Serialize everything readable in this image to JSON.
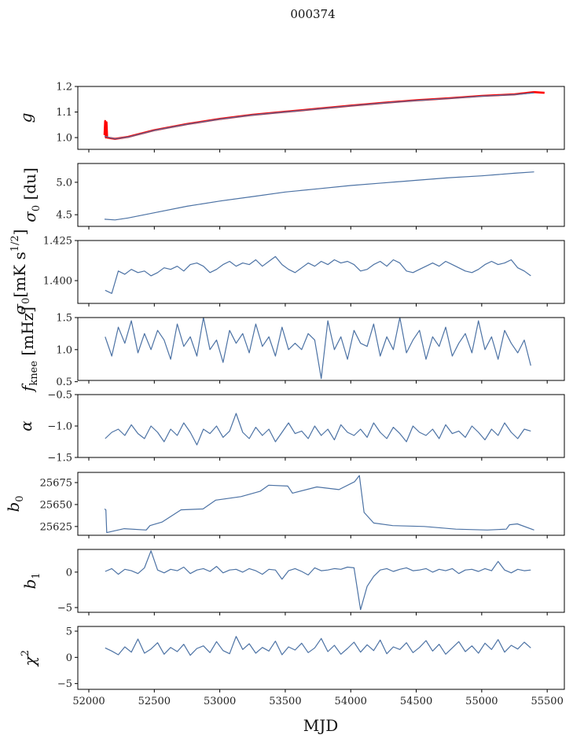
{
  "chart_data": {
    "type": "line",
    "title": "000374",
    "xlabel": "MJD",
    "xlim": [
      51916,
      55631
    ],
    "xticks": [
      52000,
      52500,
      53000,
      53500,
      54000,
      54500,
      55000,
      55500
    ],
    "line_color": "#4c72a4",
    "highlight_color": "#ff0000",
    "mjd_grid": [
      52125,
      52175,
      52225,
      52275,
      52325,
      52375,
      52425,
      52475,
      52525,
      52575,
      52625,
      52675,
      52725,
      52775,
      52825,
      52875,
      52925,
      52975,
      53025,
      53075,
      53125,
      53175,
      53225,
      53275,
      53325,
      53375,
      53425,
      53475,
      53525,
      53575,
      53625,
      53675,
      53725,
      53775,
      53825,
      53875,
      53925,
      53975,
      54025,
      54075,
      54125,
      54175,
      54225,
      54275,
      54325,
      54375,
      54425,
      54475,
      54525,
      54575,
      54625,
      54675,
      54725,
      54775,
      54825,
      54875,
      54925,
      54975,
      55025,
      55075,
      55125,
      55175,
      55225,
      55275,
      55325,
      55375
    ],
    "panels": [
      {
        "id": "g",
        "ylabel": {
          "main": "g",
          "sub": "",
          "sup": "",
          "rest": ""
        },
        "ylim": [
          0.954,
          1.2
        ],
        "yticks": [
          "1.0",
          "1.1",
          "1.2"
        ],
        "series": [
          {
            "name": "g-fit",
            "color": "#ff0000",
            "x": [
              52120,
              52125,
              52130,
              52135,
              52140,
              52200,
              52300,
              52500,
              52750,
              53000,
              53250,
              53500,
              53750,
              54000,
              54250,
              54500,
              54750,
              55000,
              55250,
              55400,
              55480
            ],
            "y": [
              1.01,
              1.065,
              1.0,
              1.06,
              1.0,
              0.995,
              1.003,
              1.029,
              1.053,
              1.073,
              1.089,
              1.101,
              1.113,
              1.125,
              1.136,
              1.146,
              1.154,
              1.163,
              1.169,
              1.178,
              1.175
            ]
          },
          {
            "name": "g",
            "color": "#4c72a4",
            "x": [
              52120,
              52200,
              52300,
              52500,
              52750,
              53000,
              53250,
              53500,
              53750,
              54000,
              54250,
              54500,
              54750,
              55000,
              55250,
              55400
            ],
            "y": [
              1.005,
              0.995,
              1.002,
              1.028,
              1.052,
              1.072,
              1.088,
              1.1,
              1.112,
              1.124,
              1.135,
              1.145,
              1.153,
              1.162,
              1.168,
              1.175
            ]
          }
        ]
      },
      {
        "id": "sigma0-du",
        "ylabel": {
          "main": "σ",
          "sub": "0",
          "sup": "",
          "rest": " [du]"
        },
        "ylim": [
          4.32,
          5.29
        ],
        "yticks": [
          "4.5",
          "5.0"
        ],
        "series": [
          {
            "name": "sigma0 du",
            "color": "#4c72a4",
            "x": [
              52120,
              52200,
              52300,
              52500,
              52750,
              53000,
              53250,
              53500,
              53750,
              54000,
              54250,
              54500,
              54750,
              55000,
              55250,
              55400
            ],
            "y": [
              4.43,
              4.42,
              4.45,
              4.53,
              4.63,
              4.71,
              4.78,
              4.85,
              4.9,
              4.95,
              4.99,
              5.03,
              5.07,
              5.1,
              5.14,
              5.16
            ]
          }
        ]
      },
      {
        "id": "sigma0-mk",
        "ylabel": {
          "main": "σ",
          "sub": "0",
          "sup": "1/2",
          "rest": "[mK s",
          "close": "]"
        },
        "ylim": [
          1.3858,
          1.425
        ],
        "yticks": [
          "1.400",
          "1.425"
        ],
        "series": [
          {
            "name": "sigma0 mK",
            "color": "#4c72a4",
            "grid": true,
            "y": [
              1.394,
              1.392,
              1.406,
              1.404,
              1.407,
              1.405,
              1.406,
              1.403,
              1.405,
              1.408,
              1.407,
              1.409,
              1.406,
              1.41,
              1.411,
              1.409,
              1.405,
              1.407,
              1.41,
              1.412,
              1.409,
              1.411,
              1.41,
              1.413,
              1.409,
              1.412,
              1.415,
              1.41,
              1.407,
              1.405,
              1.408,
              1.411,
              1.409,
              1.412,
              1.41,
              1.413,
              1.411,
              1.412,
              1.41,
              1.406,
              1.407,
              1.41,
              1.412,
              1.409,
              1.413,
              1.411,
              1.406,
              1.405,
              1.407,
              1.409,
              1.411,
              1.409,
              1.412,
              1.41,
              1.408,
              1.406,
              1.405,
              1.407,
              1.41,
              1.412,
              1.41,
              1.411,
              1.413,
              1.408,
              1.406,
              1.403
            ]
          }
        ]
      },
      {
        "id": "fknee",
        "ylabel": {
          "main": "f",
          "sub": "knee",
          "sup": "",
          "rest": " [mHz]"
        },
        "ylim": [
          0.52,
          1.5
        ],
        "yticks": [
          "0.5",
          "1.0",
          "1.5"
        ],
        "series": [
          {
            "name": "fknee",
            "color": "#4c72a4",
            "grid": true,
            "y": [
              1.2,
              0.9,
              1.35,
              1.1,
              1.45,
              0.95,
              1.25,
              1.0,
              1.3,
              1.15,
              0.85,
              1.4,
              1.05,
              1.2,
              0.9,
              1.5,
              1.0,
              1.15,
              0.8,
              1.3,
              1.1,
              1.25,
              0.95,
              1.4,
              1.05,
              1.2,
              0.9,
              1.35,
              1.0,
              1.1,
              1.0,
              1.25,
              1.15,
              0.55,
              1.45,
              1.0,
              1.2,
              0.85,
              1.3,
              1.1,
              1.05,
              1.4,
              0.9,
              1.2,
              1.0,
              1.5,
              0.95,
              1.15,
              1.3,
              0.85,
              1.2,
              1.05,
              1.35,
              0.9,
              1.1,
              1.25,
              0.95,
              1.45,
              1.0,
              1.2,
              0.85,
              1.3,
              1.1,
              0.95,
              1.15,
              0.75
            ]
          }
        ]
      },
      {
        "id": "alpha",
        "ylabel": {
          "main": "α",
          "sub": "",
          "sup": "",
          "rest": ""
        },
        "ylim": [
          -1.5,
          -0.5
        ],
        "yticks": [
          "−1.5",
          "−1.0",
          "−0.5"
        ],
        "series": [
          {
            "name": "alpha",
            "color": "#4c72a4",
            "grid": true,
            "y": [
              -1.2,
              -1.1,
              -1.05,
              -1.15,
              -0.98,
              -1.12,
              -1.2,
              -1.0,
              -1.1,
              -1.25,
              -1.05,
              -1.15,
              -0.95,
              -1.1,
              -1.3,
              -1.05,
              -1.12,
              -1.0,
              -1.18,
              -1.08,
              -0.8,
              -1.1,
              -1.2,
              -1.02,
              -1.15,
              -1.05,
              -1.25,
              -1.1,
              -0.95,
              -1.12,
              -1.08,
              -1.2,
              -1.0,
              -1.15,
              -1.05,
              -1.22,
              -0.98,
              -1.1,
              -1.15,
              -1.05,
              -1.18,
              -0.95,
              -1.1,
              -1.2,
              -1.02,
              -1.12,
              -1.25,
              -1.0,
              -1.1,
              -1.15,
              -1.05,
              -1.2,
              -0.98,
              -1.12,
              -1.08,
              -1.18,
              -1.0,
              -1.1,
              -1.22,
              -1.05,
              -1.15,
              -0.95,
              -1.1,
              -1.2,
              -1.05,
              -1.08
            ]
          }
        ]
      },
      {
        "id": "b0",
        "ylabel": {
          "main": "b",
          "sub": "0",
          "sup": "",
          "rest": ""
        },
        "ylim": [
          25615,
          25686.6
        ],
        "yticks": [
          "25625",
          "25650",
          "25675"
        ],
        "series": [
          {
            "name": "b0",
            "color": "#4c72a4",
            "x": [
              52120,
              52130,
              52137,
              52270,
              52438,
              52467,
              52559,
              52704,
              52872,
              52969,
              53162,
              53307,
              53374,
              53519,
              53555,
              53741,
              53910,
              54030,
              54066,
              54102,
              54175,
              54320,
              54561,
              54802,
              55043,
              55188,
              55212,
              55272,
              55400
            ],
            "y": [
              25645,
              25644,
              25618,
              25622.5,
              25621,
              25626,
              25630,
              25644,
              25645,
              25655,
              25659,
              25665,
              25672,
              25671,
              25663,
              25670,
              25667,
              25676,
              25683,
              25641,
              25629,
              25626,
              25625,
              25622,
              25621,
              25622,
              25627,
              25628,
              25621
            ]
          }
        ]
      },
      {
        "id": "b1",
        "ylabel": {
          "main": "b",
          "sub": "1",
          "sup": "",
          "rest": ""
        },
        "ylim": [
          -5.67,
          3.2
        ],
        "yticks": [
          "−5",
          "0"
        ],
        "series": [
          {
            "name": "b1",
            "color": "#4c72a4",
            "grid": true,
            "y": [
              0.1,
              0.5,
              -0.3,
              0.4,
              0.2,
              -0.2,
              0.6,
              3.0,
              0.3,
              -0.1,
              0.4,
              0.2,
              0.7,
              -0.2,
              0.3,
              0.5,
              0.1,
              0.8,
              -0.1,
              0.3,
              0.4,
              0.0,
              0.5,
              0.2,
              -0.3,
              0.4,
              0.3,
              -1.0,
              0.2,
              0.5,
              0.1,
              -0.4,
              0.6,
              0.2,
              0.3,
              0.5,
              0.4,
              0.7,
              0.6,
              -5.3,
              -2.0,
              -0.6,
              0.3,
              0.5,
              0.1,
              0.4,
              0.6,
              0.2,
              0.3,
              0.5,
              0.0,
              0.4,
              0.2,
              0.5,
              -0.2,
              0.3,
              0.4,
              0.1,
              0.5,
              0.2,
              1.5,
              0.3,
              -0.1,
              0.4,
              0.2,
              0.3
            ]
          }
        ]
      },
      {
        "id": "chi2",
        "ylabel": {
          "main": "χ",
          "sub": "",
          "sup": "2",
          "rest": ""
        },
        "ylim": [
          -6.1,
          5.9
        ],
        "yticks": [
          "−5",
          "0",
          "5"
        ],
        "series": [
          {
            "name": "chi2",
            "color": "#4c72a4",
            "grid": true,
            "y": [
              1.8,
              1.2,
              0.5,
              2.0,
              1.0,
              3.5,
              0.8,
              1.6,
              2.8,
              0.6,
              1.9,
              1.1,
              2.5,
              0.4,
              1.7,
              2.2,
              0.9,
              3.0,
              1.3,
              0.7,
              4.0,
              1.5,
              2.6,
              0.8,
              1.9,
              1.2,
              3.1,
              0.5,
              2.0,
              1.4,
              2.7,
              0.9,
              1.8,
              3.6,
              1.1,
              2.3,
              0.6,
              1.7,
              2.9,
              1.0,
              2.4,
              1.3,
              3.3,
              0.7,
              2.0,
              1.5,
              2.8,
              0.9,
              1.9,
              3.2,
              1.2,
              2.5,
              0.6,
              1.8,
              3.0,
              1.1,
              2.2,
              0.8,
              2.7,
              1.5,
              3.4,
              1.0,
              2.3,
              1.6,
              2.9,
              1.8
            ]
          }
        ]
      }
    ]
  }
}
